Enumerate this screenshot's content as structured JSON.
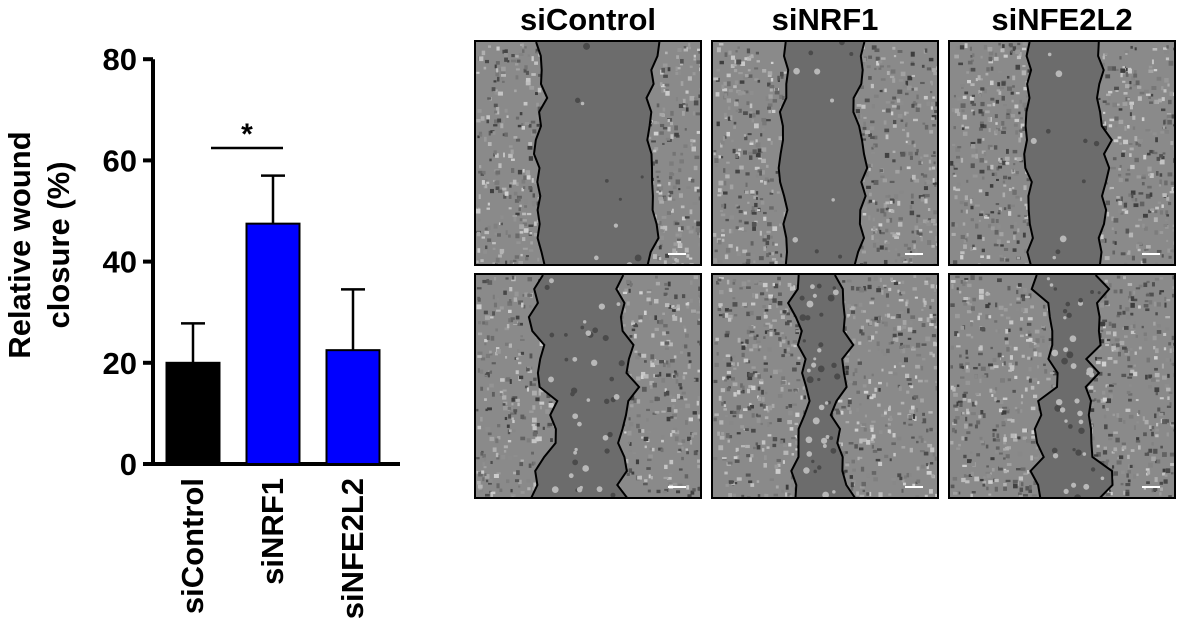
{
  "chart_data": {
    "type": "bar",
    "categories": [
      "siControl",
      "siNRF1",
      "siNFE2L2"
    ],
    "values": [
      20,
      47.5,
      22.5
    ],
    "error": [
      7.8,
      9.5,
      12
    ],
    "bar_colors": [
      "#000000",
      "#0000ff",
      "#0000ff"
    ],
    "ylabel": [
      "Relative wound",
      "closure (%)"
    ],
    "ylim": [
      0,
      80
    ],
    "yticks": [
      0,
      20,
      40,
      60,
      80
    ],
    "significance": [
      {
        "from": "siControl",
        "to": "siNRF1",
        "label": "*"
      }
    ],
    "grid": false
  },
  "micrograph_panel": {
    "columns": [
      "siControl",
      "siNRF1",
      "siNFE2L2"
    ],
    "rows": 2
  }
}
